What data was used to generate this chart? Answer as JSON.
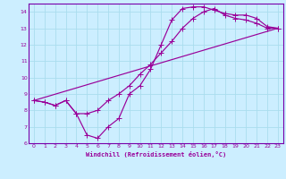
{
  "xlabel": "Windchill (Refroidissement éolien,°C)",
  "bg_color": "#cceeff",
  "grid_color": "#aaddee",
  "line_color": "#990099",
  "spine_color": "#7700aa",
  "xlim": [
    -0.5,
    23.5
  ],
  "ylim": [
    6,
    14.5
  ],
  "xticks": [
    0,
    1,
    2,
    3,
    4,
    5,
    6,
    7,
    8,
    9,
    10,
    11,
    12,
    13,
    14,
    15,
    16,
    17,
    18,
    19,
    20,
    21,
    22,
    23
  ],
  "yticks": [
    6,
    7,
    8,
    9,
    10,
    11,
    12,
    13,
    14
  ],
  "line1_x": [
    0,
    1,
    2,
    3,
    4,
    5,
    6,
    7,
    8,
    9,
    10,
    11,
    12,
    13,
    14,
    15,
    16,
    17,
    18,
    19,
    20,
    21,
    22,
    23
  ],
  "line1_y": [
    8.6,
    8.5,
    8.3,
    8.6,
    7.8,
    6.5,
    6.3,
    7.0,
    7.5,
    9.0,
    9.5,
    10.5,
    12.0,
    13.5,
    14.2,
    14.3,
    14.3,
    14.1,
    13.9,
    13.8,
    13.8,
    13.6,
    13.1,
    13.0
  ],
  "line2_x": [
    0,
    1,
    2,
    3,
    4,
    5,
    6,
    7,
    8,
    9,
    10,
    11,
    12,
    13,
    14,
    15,
    16,
    17,
    18,
    19,
    20,
    21,
    22,
    23
  ],
  "line2_y": [
    8.6,
    8.5,
    8.3,
    8.6,
    7.8,
    7.8,
    8.0,
    8.6,
    9.0,
    9.5,
    10.2,
    10.8,
    11.5,
    12.2,
    13.0,
    13.6,
    14.0,
    14.2,
    13.8,
    13.6,
    13.5,
    13.3,
    13.0,
    13.0
  ],
  "line3_x": [
    0,
    23
  ],
  "line3_y": [
    8.6,
    13.0
  ]
}
